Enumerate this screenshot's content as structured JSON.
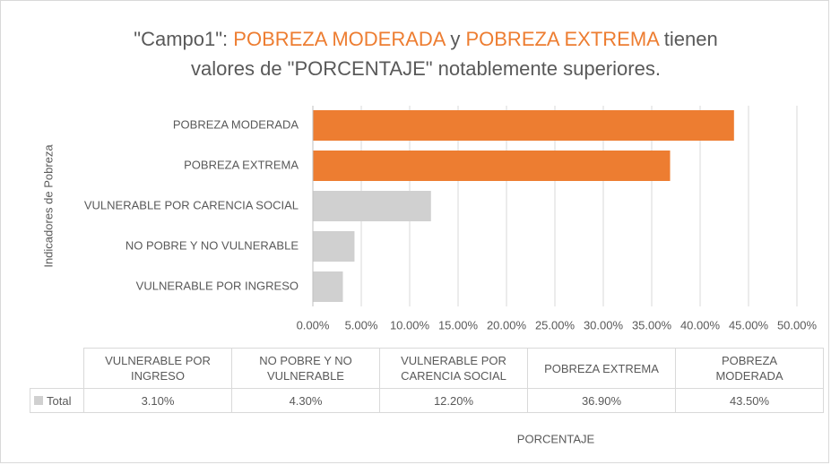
{
  "chart_data": {
    "type": "barh",
    "title_lines": [
      [
        {
          "text": "\"Campo1\": ",
          "color": "#595959"
        },
        {
          "text": "POBREZA MODERADA",
          "color": "#ED7D31"
        },
        {
          "text": " y ",
          "color": "#595959"
        },
        {
          "text": "POBREZA EXTREMA",
          "color": "#ED7D31"
        },
        {
          "text": " tienen",
          "color": "#595959"
        }
      ],
      [
        {
          "text": "valores de \"PORCENTAJE\" notablemente superiores.",
          "color": "#595959"
        }
      ]
    ],
    "y_label": "Indicadores de Pobreza",
    "x_label": "PORCENTAJE",
    "categories": [
      "VULNERABLE POR INGRESO",
      "NO POBRE Y NO VULNERABLE",
      "VULNERABLE POR CARENCIA SOCIAL",
      "POBREZA EXTREMA",
      "POBREZA MODERADA"
    ],
    "series": [
      {
        "name": "Total",
        "color": "#D0D0D0",
        "values": [
          3.1,
          4.3,
          12.2,
          36.9,
          43.5
        ],
        "value_labels": [
          "3.10%",
          "4.30%",
          "12.20%",
          "36.90%",
          "43.50%"
        ],
        "point_colors": [
          "#D0D0D0",
          "#D0D0D0",
          "#D0D0D0",
          "#ED7D31",
          "#ED7D31"
        ]
      }
    ],
    "xlim": [
      0,
      50
    ],
    "xticks": [
      {
        "value": 0,
        "label": "0.00%"
      },
      {
        "value": 5,
        "label": "5.00%"
      },
      {
        "value": 10,
        "label": "10.00%"
      },
      {
        "value": 15,
        "label": "15.00%"
      },
      {
        "value": 20,
        "label": "20.00%"
      },
      {
        "value": 25,
        "label": "25.00%"
      },
      {
        "value": 30,
        "label": "30.00%"
      },
      {
        "value": 35,
        "label": "35.00%"
      },
      {
        "value": 40,
        "label": "40.00%"
      },
      {
        "value": 45,
        "label": "45.00%"
      },
      {
        "value": 50,
        "label": "50.00%"
      }
    ],
    "grid": true,
    "data_table": true
  }
}
